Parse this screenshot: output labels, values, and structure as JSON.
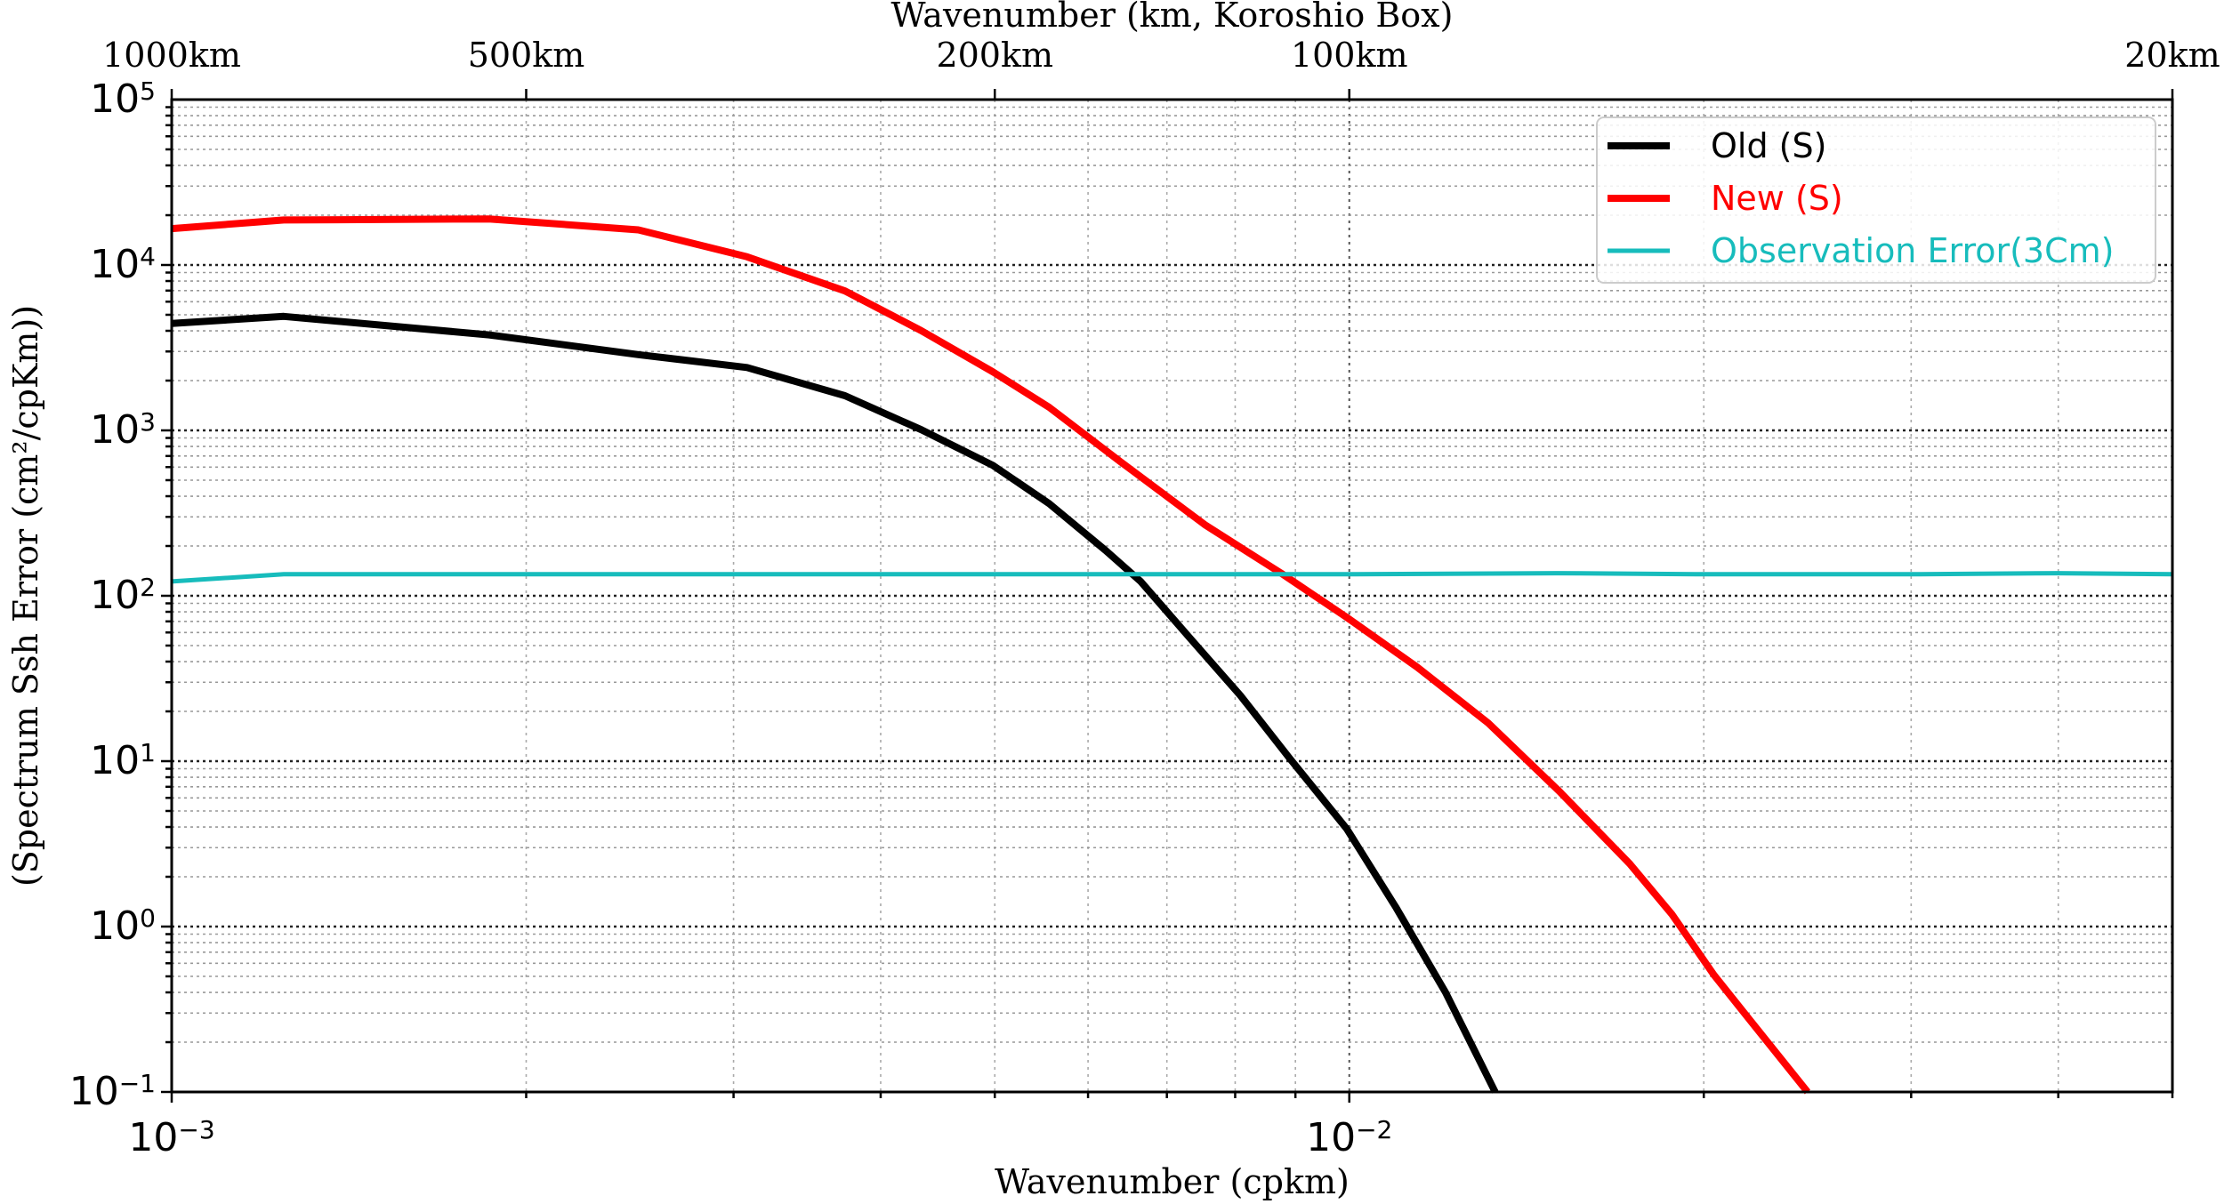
{
  "chart_data": {
    "type": "line",
    "title": "",
    "xlabel": "Wavenumber (cpkm)",
    "ylabel": "(Spectrum Ssh Error (cm²/cpKm))",
    "top_xlabel": "Wavenumber (km, Koroshio Box)",
    "x_scale": "log",
    "y_scale": "log",
    "xlim": [
      0.001,
      0.05
    ],
    "ylim": [
      0.1,
      100000
    ],
    "grid": true,
    "legend_position": "top-right",
    "x_ticks": [
      {
        "value": 0.001,
        "base": "10",
        "exp": "−3"
      },
      {
        "value": 0.01,
        "base": "10",
        "exp": "−2"
      }
    ],
    "y_ticks": [
      {
        "value": 0.1,
        "base": "10",
        "exp": "−1"
      },
      {
        "value": 1,
        "base": "10",
        "exp": "0"
      },
      {
        "value": 10,
        "base": "10",
        "exp": "1"
      },
      {
        "value": 100,
        "base": "10",
        "exp": "2"
      },
      {
        "value": 1000,
        "base": "10",
        "exp": "3"
      },
      {
        "value": 10000,
        "base": "10",
        "exp": "4"
      },
      {
        "value": 100000,
        "base": "10",
        "exp": "5"
      }
    ],
    "top_ticks": [
      {
        "value": 0.001,
        "label": "1000km"
      },
      {
        "value": 0.002,
        "label": "500km"
      },
      {
        "value": 0.005,
        "label": "200km"
      },
      {
        "value": 0.01,
        "label": "100km"
      },
      {
        "value": 0.05,
        "label": "20km"
      }
    ],
    "series": [
      {
        "name": "Old (S)",
        "color": "#000000",
        "x": [
          0.001,
          0.001245,
          0.00186,
          0.00249,
          0.00308,
          0.00373,
          0.00433,
          0.00498,
          0.00556,
          0.00621,
          0.00665,
          0.00733,
          0.00808,
          0.0089,
          0.00995,
          0.01096,
          0.01207,
          0.0133
        ],
        "y": [
          4430,
          4890,
          3780,
          2870,
          2400,
          1620,
          1010,
          615,
          361,
          188,
          122,
          55,
          25,
          10.4,
          3.9,
          1.3,
          0.4,
          0.1
        ]
      },
      {
        "name": "New (S)",
        "color": "#ff0000",
        "x": [
          0.001,
          0.001245,
          0.00186,
          0.00249,
          0.00308,
          0.00373,
          0.00433,
          0.00498,
          0.00556,
          0.00638,
          0.00754,
          0.00878,
          0.00995,
          0.01142,
          0.01312,
          0.01507,
          0.0173,
          0.0188,
          0.0204,
          0.0222,
          0.0245
        ],
        "y": [
          16600,
          18700,
          19000,
          16300,
          11200,
          6970,
          4010,
          2260,
          1380,
          653,
          269,
          135,
          74,
          37,
          17,
          6.6,
          2.4,
          1.18,
          0.51,
          0.24,
          0.1
        ]
      },
      {
        "name": "Observation Error(3Cm)",
        "color": "#17bcbc",
        "x": [
          0.001,
          0.001245,
          0.002,
          0.005,
          0.01,
          0.015,
          0.02,
          0.03,
          0.04,
          0.05
        ],
        "y": [
          122,
          135,
          135,
          135,
          135,
          137,
          135,
          135,
          137,
          135
        ]
      }
    ]
  }
}
